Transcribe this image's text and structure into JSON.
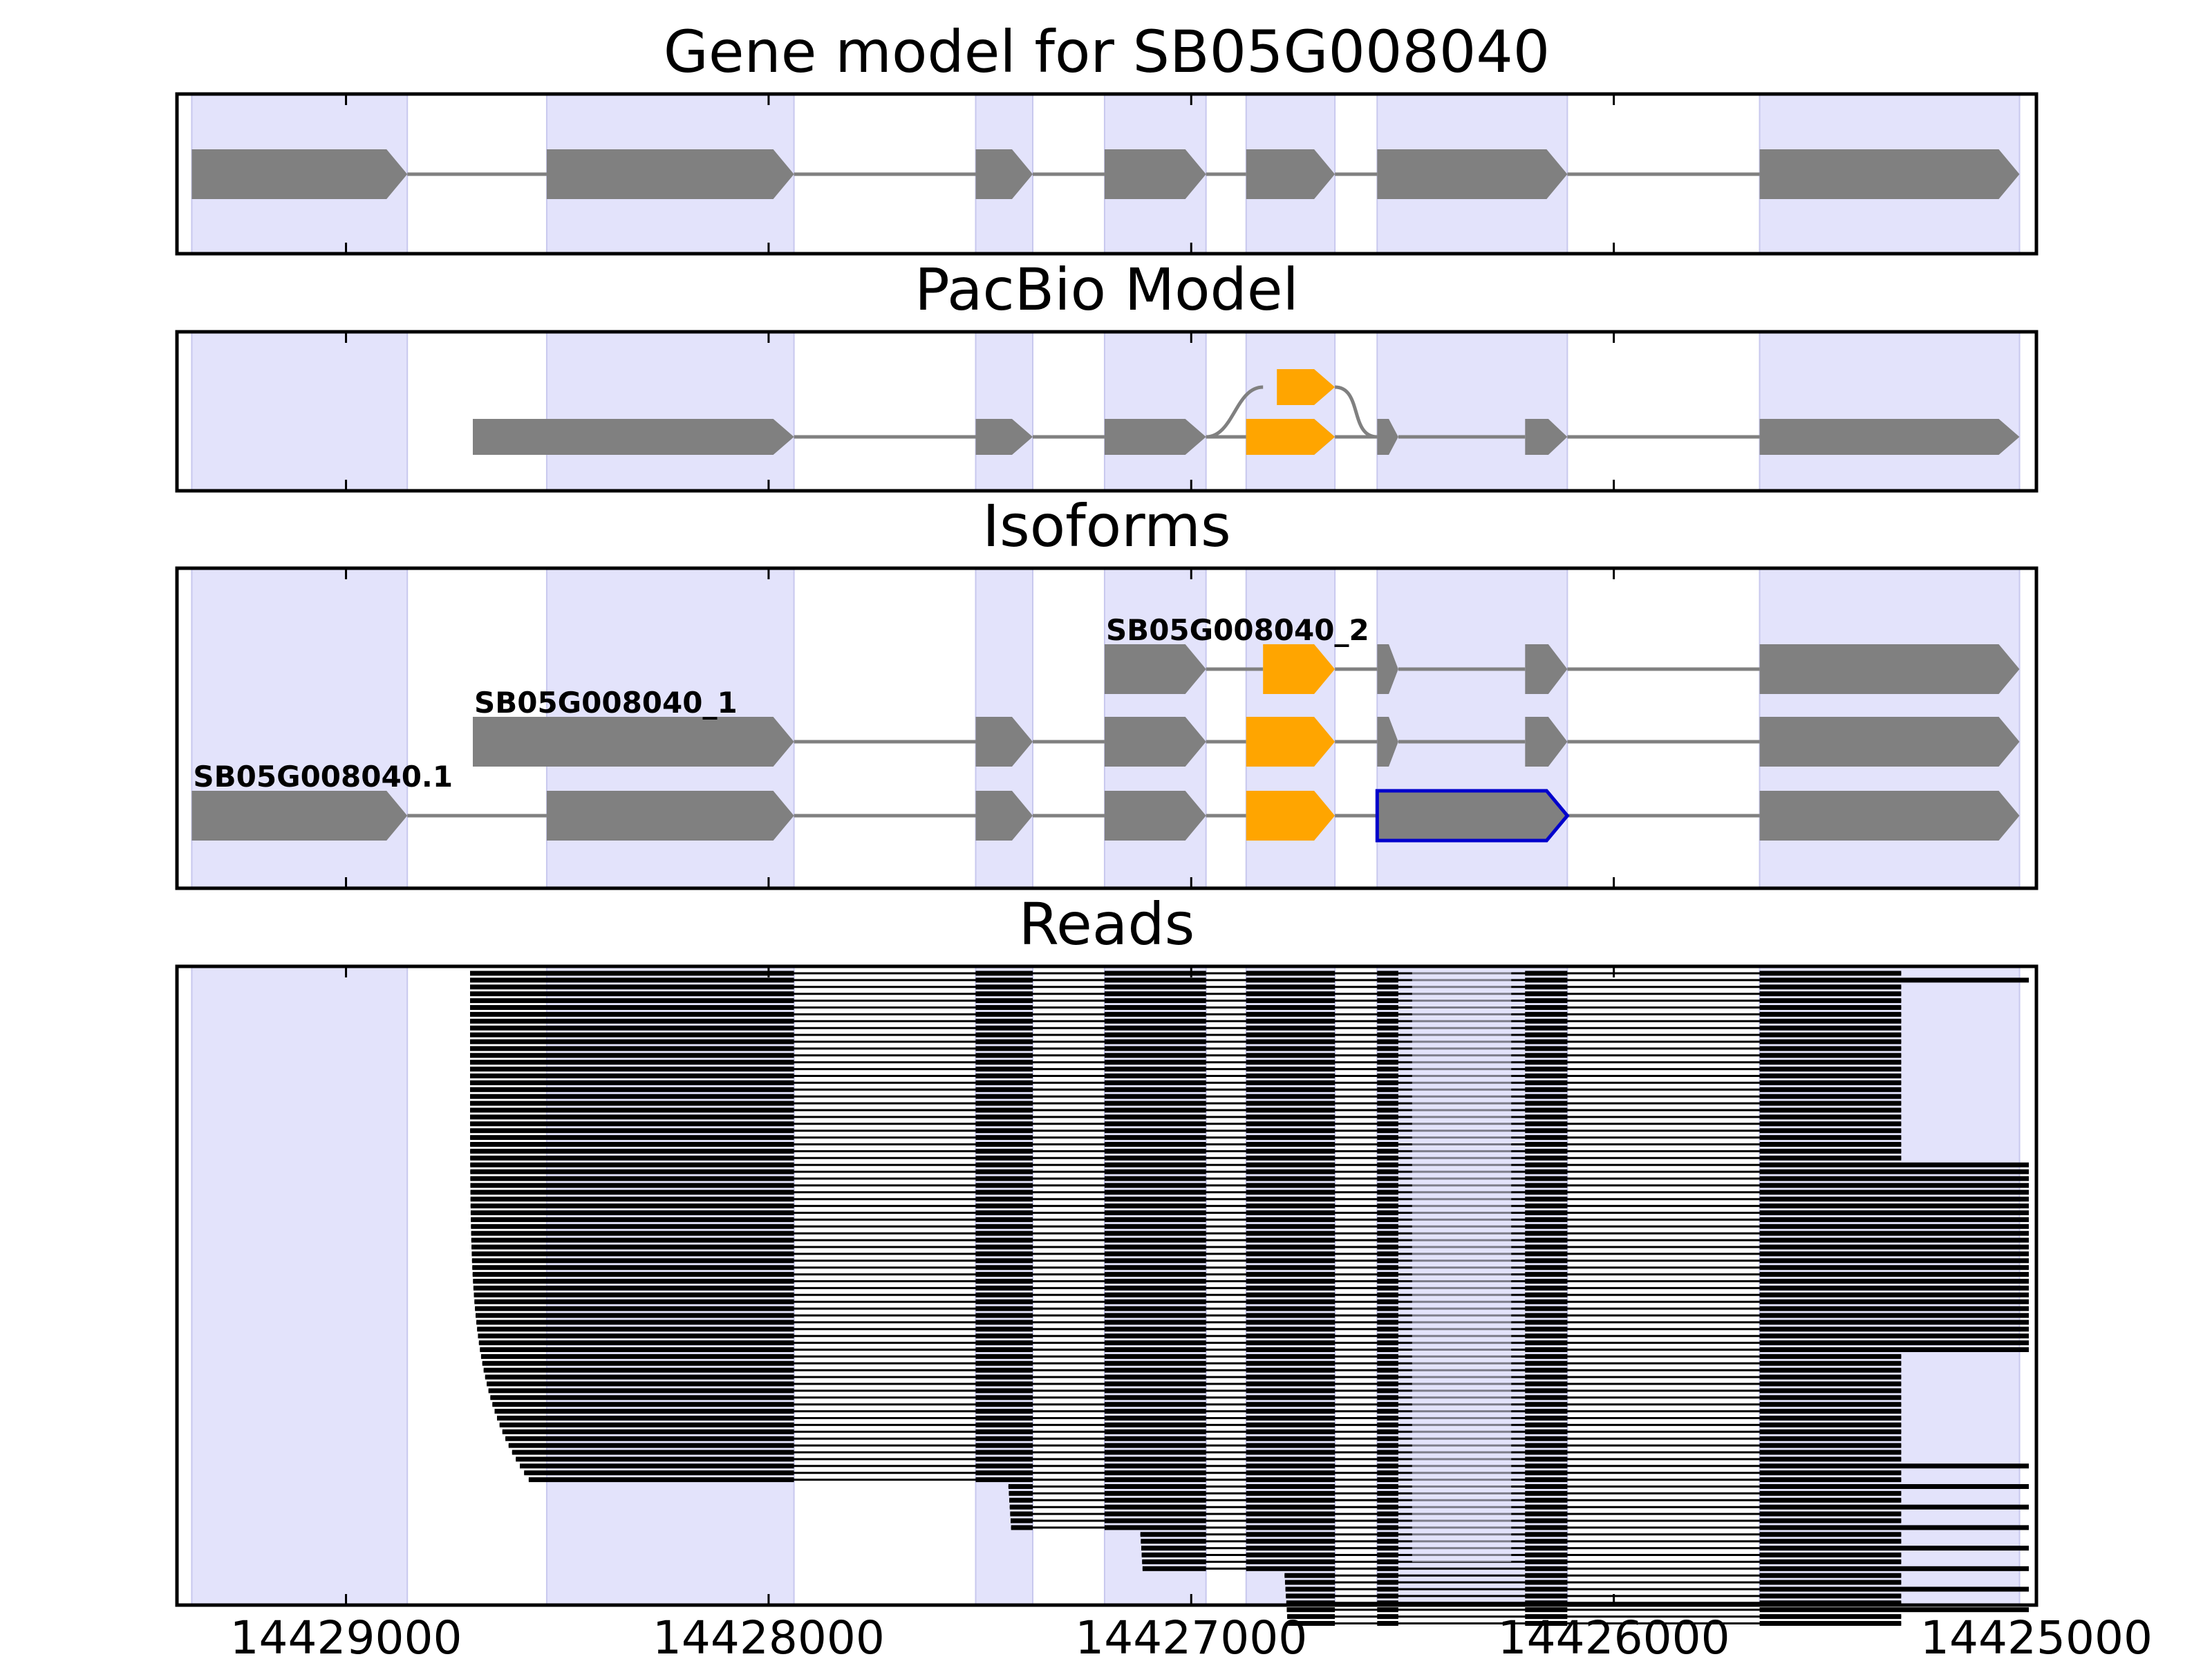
{
  "chart_data": {
    "type": "gene-structure",
    "x_direction": "reversed",
    "xlim": [
      14429400,
      14425000
    ],
    "xticks": [
      14429000,
      14428000,
      14427000,
      14426000,
      14425000
    ],
    "tick_labels": [
      "14429000",
      "14428000",
      "14427000",
      "14426000",
      "14425000"
    ],
    "colors": {
      "exon": "#808080",
      "highlight": "#ffa500",
      "shade": "#e3e3fb",
      "intron": "#808080",
      "outline": "#0000cc",
      "read": "#000000"
    },
    "shaded_regions": [
      [
        14429365,
        14428855
      ],
      [
        14428525,
        14427940
      ],
      [
        14427510,
        14427375
      ],
      [
        14427205,
        14426965
      ],
      [
        14426870,
        14426660
      ],
      [
        14426560,
        14426110
      ],
      [
        14425655,
        14425040
      ]
    ],
    "panels": [
      {
        "title": "Gene model for SB05G008040",
        "tracks": [
          {
            "label": "",
            "exons": [
              [
                14429365,
                14428855,
                "gray"
              ],
              [
                14428525,
                14427940,
                "gray"
              ],
              [
                14427510,
                14427375,
                "gray"
              ],
              [
                14427205,
                14426965,
                "gray"
              ],
              [
                14426870,
                14426660,
                "gray"
              ],
              [
                14426560,
                14426110,
                "gray"
              ],
              [
                14425655,
                14425040,
                "gray"
              ]
            ]
          }
        ]
      },
      {
        "title": "PacBio Model",
        "tracks": [
          {
            "label": "",
            "exons": [
              [
                14428700,
                14427940,
                "gray"
              ],
              [
                14427510,
                14427375,
                "gray"
              ],
              [
                14427205,
                14426965,
                "gray"
              ],
              [
                14426870,
                14426660,
                "gray"
              ],
              [
                14426560,
                14426510,
                "gray"
              ],
              [
                14426210,
                14426110,
                "gray"
              ],
              [
                14425655,
                14425040,
                "gray"
              ]
            ],
            "alt_exon": [
              14426830,
              14426660
            ]
          }
        ]
      },
      {
        "title": "Isoforms",
        "tracks": [
          {
            "label": "SB05G008040_2",
            "exons": [
              [
                14427205,
                14426965,
                "gray"
              ],
              [
                14426830,
                14426660,
                "orange"
              ],
              [
                14426560,
                14426510,
                "gray"
              ],
              [
                14426210,
                14426110,
                "gray"
              ],
              [
                14425655,
                14425040,
                "gray"
              ]
            ]
          },
          {
            "label": "SB05G008040_1",
            "exons": [
              [
                14428700,
                14427940,
                "gray"
              ],
              [
                14427510,
                14427375,
                "gray"
              ],
              [
                14427205,
                14426965,
                "gray"
              ],
              [
                14426870,
                14426660,
                "orange"
              ],
              [
                14426560,
                14426510,
                "gray"
              ],
              [
                14426210,
                14426110,
                "gray"
              ],
              [
                14425655,
                14425040,
                "gray"
              ]
            ]
          },
          {
            "label": "SB05G008040.1",
            "exons": [
              [
                14429365,
                14428855,
                "gray"
              ],
              [
                14428525,
                14427940,
                "gray"
              ],
              [
                14427510,
                14427375,
                "gray"
              ],
              [
                14427205,
                14426965,
                "gray"
              ],
              [
                14426870,
                14426660,
                "orange"
              ],
              [
                14426560,
                14426110,
                "outline"
              ],
              [
                14425655,
                14425040,
                "gray"
              ]
            ]
          }
        ]
      },
      {
        "title": "Reads",
        "read_count": 96,
        "read_junctions": [
          14427940,
          14427510,
          14427375,
          14427205,
          14426965,
          14426870,
          14426660,
          14426560,
          14426510,
          14426210,
          14426110,
          14425655,
          14425320
        ]
      }
    ]
  }
}
